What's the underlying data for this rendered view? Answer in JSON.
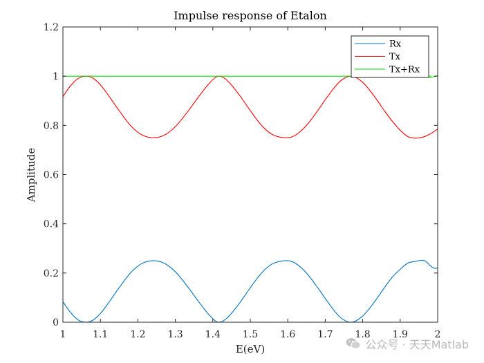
{
  "chart_data": {
    "type": "line",
    "title": "Impulse response of Etalon",
    "xlabel": "E(eV)",
    "ylabel": "Amplitude",
    "xlim": [
      1,
      2
    ],
    "ylim": [
      0,
      1.2
    ],
    "xticks": [
      "1",
      "1.1",
      "1.2",
      "1.3",
      "1.4",
      "1.5",
      "1.6",
      "1.7",
      "1.8",
      "1.9",
      "2"
    ],
    "yticks": [
      "0",
      "0.2",
      "0.4",
      "0.6",
      "0.8",
      "1",
      "1.2"
    ],
    "legend_position": "top-right",
    "grid": false,
    "series": [
      {
        "name": "Rx",
        "color": "#0072BD",
        "x": [
          1.0,
          1.02,
          1.04,
          1.06,
          1.08,
          1.1,
          1.12,
          1.15,
          1.18,
          1.21,
          1.24,
          1.27,
          1.3,
          1.33,
          1.36,
          1.39,
          1.415,
          1.44,
          1.47,
          1.5,
          1.53,
          1.56,
          1.595,
          1.62,
          1.65,
          1.68,
          1.71,
          1.74,
          1.77,
          1.8,
          1.83,
          1.86,
          1.88,
          1.9,
          1.92,
          1.94,
          1.96,
          1.97,
          1.98,
          1.99,
          2.0
        ],
        "y": [
          0.083,
          0.04,
          0.01,
          0.0,
          0.008,
          0.035,
          0.075,
          0.14,
          0.2,
          0.238,
          0.25,
          0.24,
          0.205,
          0.15,
          0.088,
          0.03,
          0.0,
          0.02,
          0.075,
          0.14,
          0.2,
          0.238,
          0.25,
          0.24,
          0.2,
          0.14,
          0.075,
          0.02,
          0.0,
          0.025,
          0.08,
          0.145,
          0.185,
          0.215,
          0.24,
          0.247,
          0.252,
          0.245,
          0.23,
          0.22,
          0.22
        ]
      },
      {
        "name": "Tx",
        "color": "#FF0000",
        "x": [
          1.0,
          1.02,
          1.04,
          1.06,
          1.08,
          1.1,
          1.12,
          1.15,
          1.18,
          1.21,
          1.24,
          1.27,
          1.3,
          1.33,
          1.36,
          1.39,
          1.415,
          1.44,
          1.47,
          1.5,
          1.53,
          1.56,
          1.595,
          1.62,
          1.65,
          1.68,
          1.71,
          1.74,
          1.77,
          1.8,
          1.83,
          1.86,
          1.88,
          1.9,
          1.92,
          1.94,
          1.96,
          1.98,
          2.0
        ],
        "y": [
          0.917,
          0.96,
          0.99,
          1.0,
          0.992,
          0.965,
          0.925,
          0.86,
          0.8,
          0.762,
          0.75,
          0.76,
          0.795,
          0.85,
          0.912,
          0.97,
          1.0,
          0.98,
          0.925,
          0.86,
          0.8,
          0.762,
          0.75,
          0.76,
          0.8,
          0.86,
          0.925,
          0.98,
          1.0,
          0.975,
          0.92,
          0.855,
          0.815,
          0.78,
          0.755,
          0.748,
          0.752,
          0.765,
          0.785
        ]
      },
      {
        "name": "Tx+Rx",
        "color": "#00DD00",
        "x": [
          1.0,
          1.9,
          1.95,
          1.97,
          1.98,
          1.99,
          2.0
        ],
        "y": [
          1.0,
          1.0,
          1.0,
          0.998,
          0.995,
          0.998,
          1.003
        ]
      }
    ]
  },
  "watermark": {
    "text": "公众号 · 天天Matlab",
    "icon": "wechat-icon"
  }
}
